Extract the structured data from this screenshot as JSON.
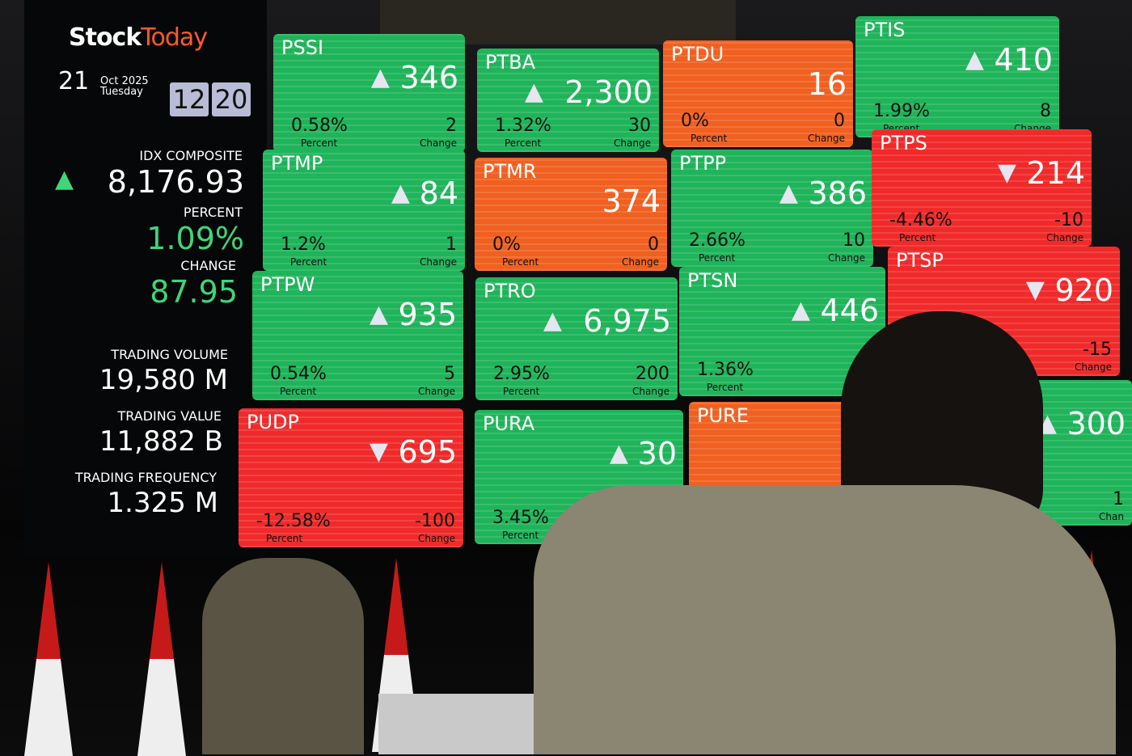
{
  "board": {
    "logo_stock": "Stock",
    "logo_today": "Today",
    "day": "21",
    "month_year": "Oct 2025",
    "weekday": "Tuesday",
    "hour": "12",
    "minute": "20"
  },
  "index": {
    "label": "IDX COMPOSITE",
    "value": "8,176.93",
    "direction": "up",
    "percent_label": "PERCENT",
    "percent": "1.09%",
    "change_label": "CHANGE",
    "change": "87.95"
  },
  "trading": {
    "volume_label": "TRADING VOLUME",
    "volume": "19,580 M",
    "value_label": "TRADING VALUE",
    "value": "11,882 B",
    "frequency_label": "TRADING FREQUENCY",
    "frequency": "1.325 M"
  },
  "colors": {
    "up": "#1fb45a",
    "down": "#f02a2a",
    "flat": "#f06020"
  },
  "tiles": [
    {
      "ticker": "PSSI",
      "dir": "up",
      "price": "346",
      "percent": "0.58%",
      "change": "2",
      "percent_label": "Percent",
      "change_label": "Change"
    },
    {
      "ticker": "PTBA",
      "dir": "up",
      "price": "2,300",
      "percent": "1.32%",
      "change": "30",
      "percent_label": "Percent",
      "change_label": "Change"
    },
    {
      "ticker": "PTDU",
      "dir": "flat",
      "price": "16",
      "percent": "0%",
      "change": "0",
      "percent_label": "Percent",
      "change_label": "Change"
    },
    {
      "ticker": "PTIS",
      "dir": "up",
      "price": "410",
      "percent": "1.99%",
      "change": "8",
      "percent_label": "Percent",
      "change_label": "Change"
    },
    {
      "ticker": "PTMP",
      "dir": "up",
      "price": "84",
      "percent": "1.2%",
      "change": "1",
      "percent_label": "Percent",
      "change_label": "Change"
    },
    {
      "ticker": "PTMR",
      "dir": "flat",
      "price": "374",
      "percent": "0%",
      "change": "0",
      "percent_label": "Percent",
      "change_label": "Change"
    },
    {
      "ticker": "PTPP",
      "dir": "up",
      "price": "386",
      "percent": "2.66%",
      "change": "10",
      "percent_label": "Percent",
      "change_label": "Change"
    },
    {
      "ticker": "PTPS",
      "dir": "down",
      "price": "214",
      "percent": "-4.46%",
      "change": "-10",
      "percent_label": "Percent",
      "change_label": "Change"
    },
    {
      "ticker": "PTPW",
      "dir": "up",
      "price": "935",
      "percent": "0.54%",
      "change": "5",
      "percent_label": "Percent",
      "change_label": "Change"
    },
    {
      "ticker": "PTRO",
      "dir": "up",
      "price": "6,975",
      "percent": "2.95%",
      "change": "200",
      "percent_label": "Percent",
      "change_label": "Change"
    },
    {
      "ticker": "PTSN",
      "dir": "up",
      "price": "446",
      "percent": "1.36%",
      "change": "",
      "percent_label": "Percent",
      "change_label": "Chı"
    },
    {
      "ticker": "PTSP",
      "dir": "down",
      "price": "920",
      "percent": "",
      "change": "-15",
      "percent_label": "",
      "change_label": "Change"
    },
    {
      "ticker": "PUDP",
      "dir": "down",
      "price": "695",
      "percent": "-12.58%",
      "change": "-100",
      "percent_label": "Percent",
      "change_label": "Change"
    },
    {
      "ticker": "PURA",
      "dir": "up",
      "price": "30",
      "percent": "3.45%",
      "change": "",
      "percent_label": "Percent",
      "change_label": ""
    },
    {
      "ticker": "PURE",
      "dir": "flat",
      "price": "",
      "percent": "",
      "change": "",
      "percent_label": "",
      "change_label": ""
    },
    {
      "ticker": "",
      "dir": "up",
      "price": "300",
      "percent": "%",
      "change": "1",
      "percent_label": "",
      "change_label": "Chan"
    }
  ]
}
